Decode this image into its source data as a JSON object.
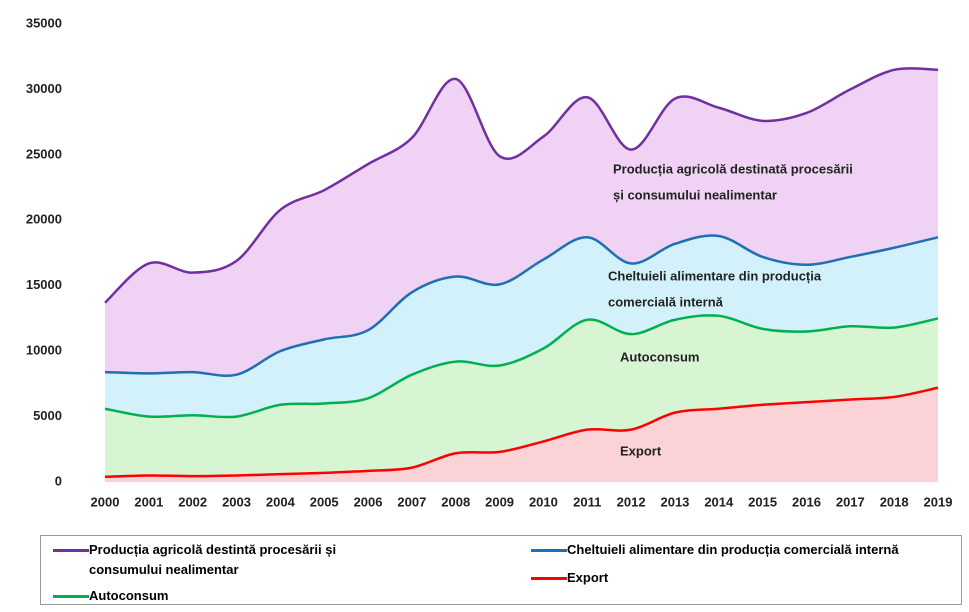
{
  "chart_data": {
    "type": "stacked_area",
    "categories": [
      "2000",
      "2001",
      "2002",
      "2003",
      "2004",
      "2005",
      "2006",
      "2007",
      "2008",
      "2009",
      "2010",
      "2011",
      "2012",
      "2013",
      "2014",
      "2015",
      "2016",
      "2017",
      "2018",
      "2019"
    ],
    "ylim": [
      0,
      35000
    ],
    "yticks": [
      0,
      5000,
      10000,
      15000,
      20000,
      25000,
      30000,
      35000
    ],
    "series": [
      {
        "name": "Export",
        "color": "#ff0000",
        "fill_color": "#fbd3d6",
        "values": [
          400,
          500,
          450,
          500,
          600,
          700,
          850,
          1100,
          2200,
          2300,
          3100,
          4000,
          4000,
          5300,
          5600,
          5900,
          6100,
          6300,
          6500,
          7200
        ]
      },
      {
        "name": "Autoconsum",
        "color": "#00b050",
        "fill_color": "#d8f5d3",
        "values": [
          5200,
          4500,
          4650,
          4500,
          5300,
          5300,
          5550,
          7100,
          7000,
          6600,
          7100,
          8400,
          7300,
          7100,
          7100,
          5800,
          5400,
          5600,
          5300,
          5300
        ]
      },
      {
        "name": "Cheltuieli alimentare din producția comercială internă",
        "color": "#1f6fb4",
        "fill_color": "#d3f1fa",
        "values": [
          2800,
          3300,
          3300,
          3200,
          4100,
          4900,
          5200,
          6300,
          6500,
          6200,
          6800,
          6300,
          5400,
          5800,
          6100,
          5500,
          5100,
          5300,
          6100,
          6200
        ]
      },
      {
        "name": "Producția agricolă destintă procesării și consumului nealimentar",
        "color": "#7030a0",
        "fill_color": "#efd2f4",
        "values": [
          5300,
          8400,
          7600,
          8700,
          10800,
          11400,
          12700,
          11800,
          15100,
          9800,
          9400,
          10700,
          8700,
          11100,
          9800,
          10400,
          11600,
          12800,
          13600,
          12800
        ]
      }
    ],
    "annotations": [
      {
        "lines": [
          "Producția agricolă destinată procesării",
          "și consumului nealimentar"
        ]
      },
      {
        "lines": [
          "Cheltuieli alimentare din producția",
          "comercială internă"
        ]
      },
      {
        "lines": [
          "Autoconsum"
        ]
      },
      {
        "lines": [
          "Export"
        ]
      }
    ]
  }
}
